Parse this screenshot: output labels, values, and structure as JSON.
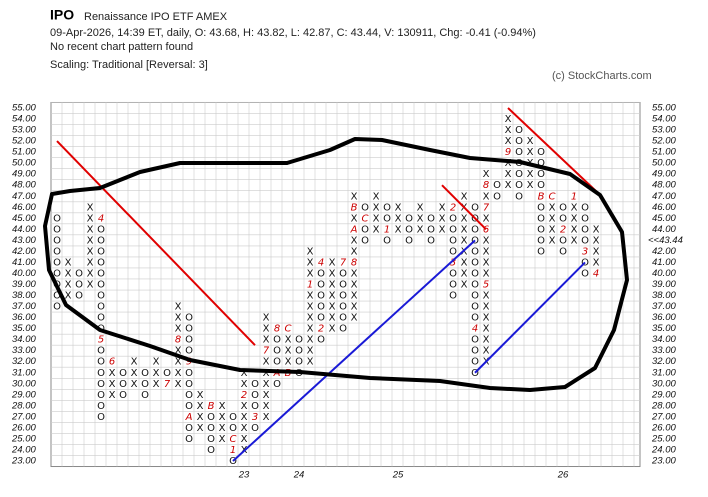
{
  "chart_data": {
    "type": "point-and-figure",
    "symbol": "IPO",
    "name": "Renaissance IPO ETF  AMEX",
    "quote": "09-Apr-2026, 14:39 ET, daily, O: 43.68, H: 43.82, L: 42.87, C: 43.44, V: 130911, Chg: -0.41 (-0.94%)",
    "pattern": "No recent chart pattern found",
    "scaling": "Scaling: Traditional [Reversal: 3]",
    "credit": "(c) StockCharts.com",
    "ylim": [
      23,
      55
    ],
    "yticks": [
      {
        "value": 23,
        "label": "23.00"
      },
      {
        "value": 24,
        "label": "24.00"
      },
      {
        "value": 25,
        "label": "25.00"
      },
      {
        "value": 26,
        "label": "26.00"
      },
      {
        "value": 27,
        "label": "27.00"
      },
      {
        "value": 28,
        "label": "28.00"
      },
      {
        "value": 29,
        "label": "29.00"
      },
      {
        "value": 30,
        "label": "30.00"
      },
      {
        "value": 31,
        "label": "31.00"
      },
      {
        "value": 32,
        "label": "32.00"
      },
      {
        "value": 33,
        "label": "33.00"
      },
      {
        "value": 34,
        "label": "34.00"
      },
      {
        "value": 35,
        "label": "35.00"
      },
      {
        "value": 36,
        "label": "36.00"
      },
      {
        "value": 37,
        "label": "37.00"
      },
      {
        "value": 38,
        "label": "38.00"
      },
      {
        "value": 39,
        "label": "39.00"
      },
      {
        "value": 40,
        "label": "40.00"
      },
      {
        "value": 41,
        "label": "41.00"
      },
      {
        "value": 42,
        "label": "42.00"
      },
      {
        "value": 43,
        "label": "43.00"
      },
      {
        "value": 44,
        "label": "44.00"
      },
      {
        "value": 45,
        "label": "45.00"
      },
      {
        "value": 46,
        "label": "46.00"
      },
      {
        "value": 47,
        "label": "47.00"
      },
      {
        "value": 48,
        "label": "48.00"
      },
      {
        "value": 49,
        "label": "49.00"
      },
      {
        "value": 50,
        "label": "50.00"
      },
      {
        "value": 51,
        "label": "51.00"
      },
      {
        "value": 52,
        "label": "52.00"
      },
      {
        "value": 53,
        "label": "53.00"
      },
      {
        "value": 54,
        "label": "54.00"
      },
      {
        "value": 55,
        "label": "55.00"
      }
    ],
    "highlight_tick": 43,
    "last_close": {
      "value": 43.44,
      "label": "<<43.44"
    },
    "x_color": "#111111",
    "o_color": "#111111",
    "label_color": "#cc0000",
    "highlight_color": "#cc0000",
    "columns": [
      {
        "type": "O",
        "high": 45,
        "low": 37
      },
      {
        "type": "X",
        "low": 38,
        "high": 41
      },
      {
        "type": "O",
        "high": 40,
        "low": 38
      },
      {
        "type": "X",
        "low": 39,
        "high": 46
      },
      {
        "type": "O",
        "high": 45,
        "low": 27
      },
      {
        "type": "X",
        "low": 29,
        "high": 32
      },
      {
        "type": "O",
        "high": 31,
        "low": 29
      },
      {
        "type": "X",
        "low": 30,
        "high": 32
      },
      {
        "type": "O",
        "high": 31,
        "low": 29
      },
      {
        "type": "X",
        "low": 30,
        "high": 32
      },
      {
        "type": "O",
        "high": 31,
        "low": 30
      },
      {
        "type": "X",
        "low": 30,
        "high": 37
      },
      {
        "type": "O",
        "high": 36,
        "low": 25
      },
      {
        "type": "X",
        "low": 26,
        "high": 29
      },
      {
        "type": "O",
        "high": 28,
        "low": 24
      },
      {
        "type": "X",
        "low": 25,
        "high": 28
      },
      {
        "type": "O",
        "high": 27,
        "low": 23
      },
      {
        "type": "X",
        "low": 24,
        "high": 31
      },
      {
        "type": "O",
        "high": 30,
        "low": 26
      },
      {
        "type": "X",
        "low": 27,
        "high": 36
      },
      {
        "type": "O",
        "high": 35,
        "low": 30
      },
      {
        "type": "X",
        "low": 31,
        "high": 35
      },
      {
        "type": "O",
        "high": 34,
        "low": 31
      },
      {
        "type": "X",
        "low": 32,
        "high": 42
      },
      {
        "type": "O",
        "high": 41,
        "low": 34
      },
      {
        "type": "X",
        "low": 35,
        "high": 41
      },
      {
        "type": "O",
        "high": 40,
        "low": 35
      },
      {
        "type": "X",
        "low": 36,
        "high": 47
      },
      {
        "type": "O",
        "high": 46,
        "low": 43
      },
      {
        "type": "X",
        "low": 44,
        "high": 47
      },
      {
        "type": "O",
        "high": 46,
        "low": 43
      },
      {
        "type": "X",
        "low": 44,
        "high": 46
      },
      {
        "type": "O",
        "high": 45,
        "low": 43
      },
      {
        "type": "X",
        "low": 44,
        "high": 46
      },
      {
        "type": "O",
        "high": 45,
        "low": 43
      },
      {
        "type": "X",
        "low": 44,
        "high": 46
      },
      {
        "type": "O",
        "high": 45,
        "low": 38
      },
      {
        "type": "X",
        "low": 39,
        "high": 47
      },
      {
        "type": "O",
        "high": 46,
        "low": 31
      },
      {
        "type": "X",
        "low": 32,
        "high": 49
      },
      {
        "type": "O",
        "high": 48,
        "low": 47
      },
      {
        "type": "X",
        "low": 48,
        "high": 54
      },
      {
        "type": "O",
        "high": 53,
        "low": 47
      },
      {
        "type": "X",
        "low": 48,
        "high": 52
      },
      {
        "type": "O",
        "high": 51,
        "low": 42
      },
      {
        "type": "X",
        "low": 43,
        "high": 47
      },
      {
        "type": "O",
        "high": 46,
        "low": 42
      },
      {
        "type": "X",
        "low": 43,
        "high": 47
      },
      {
        "type": "O",
        "high": 46,
        "low": 40
      },
      {
        "type": "X",
        "low": 41,
        "high": 44
      }
    ],
    "month_labels": [
      {
        "column": 4,
        "price": 45,
        "label": "4"
      },
      {
        "column": 4,
        "price": 34,
        "label": "5"
      },
      {
        "column": 5,
        "price": 32,
        "label": "6"
      },
      {
        "column": 10,
        "price": 30,
        "label": "7"
      },
      {
        "column": 11,
        "price": 34,
        "label": "8"
      },
      {
        "column": 12,
        "price": 32,
        "label": "9"
      },
      {
        "column": 12,
        "price": 27,
        "label": "A"
      },
      {
        "column": 14,
        "price": 28,
        "label": "B"
      },
      {
        "column": 16,
        "price": 25,
        "label": "C"
      },
      {
        "column": 16,
        "price": 24,
        "label": "1"
      },
      {
        "column": 17,
        "price": 29,
        "label": "2"
      },
      {
        "column": 18,
        "price": 27,
        "label": "3"
      },
      {
        "column": 19,
        "price": 33,
        "label": "7"
      },
      {
        "column": 20,
        "price": 35,
        "label": "8"
      },
      {
        "column": 20,
        "price": 31,
        "label": "A"
      },
      {
        "column": 21,
        "price": 35,
        "label": "C"
      },
      {
        "column": 21,
        "price": 31,
        "label": "B"
      },
      {
        "column": 23,
        "price": 39,
        "label": "1"
      },
      {
        "column": 24,
        "price": 35,
        "label": "2"
      },
      {
        "column": 24,
        "price": 41,
        "label": "4"
      },
      {
        "column": 26,
        "price": 41,
        "label": "7"
      },
      {
        "column": 27,
        "price": 41,
        "label": "8"
      },
      {
        "column": 27,
        "price": 46,
        "label": "B"
      },
      {
        "column": 27,
        "price": 44,
        "label": "A"
      },
      {
        "column": 28,
        "price": 45,
        "label": "C"
      },
      {
        "column": 30,
        "price": 44,
        "label": "1"
      },
      {
        "column": 36,
        "price": 46,
        "label": "2"
      },
      {
        "column": 36,
        "price": 41,
        "label": "3"
      },
      {
        "column": 38,
        "price": 35,
        "label": "4"
      },
      {
        "column": 39,
        "price": 39,
        "label": "5"
      },
      {
        "column": 39,
        "price": 44,
        "label": "6"
      },
      {
        "column": 39,
        "price": 46,
        "label": "7"
      },
      {
        "column": 39,
        "price": 48,
        "label": "8"
      },
      {
        "column": 41,
        "price": 51,
        "label": "9"
      },
      {
        "column": 44,
        "price": 47,
        "label": "B"
      },
      {
        "column": 45,
        "price": 47,
        "label": "C"
      },
      {
        "column": 47,
        "price": 47,
        "label": "1"
      },
      {
        "column": 46,
        "price": 44,
        "label": "2"
      },
      {
        "column": 48,
        "price": 42,
        "label": "3"
      },
      {
        "column": 49,
        "price": 40,
        "label": "4"
      }
    ],
    "year_labels": [
      {
        "column": 17,
        "label": "23"
      },
      {
        "column": 22,
        "label": "24"
      },
      {
        "column": 31,
        "label": "25"
      },
      {
        "column": 46,
        "label": "26"
      }
    ],
    "trendlines": [
      {
        "color": "#e00000",
        "from": [
          0,
          52
        ],
        "to": [
          18,
          33.5
        ]
      },
      {
        "color": "#e00000",
        "from": [
          35,
          48
        ],
        "to": [
          39,
          44
        ]
      },
      {
        "color": "#e00000",
        "from": [
          41,
          55
        ],
        "to": [
          49.5,
          47
        ]
      },
      {
        "color": "#1a1ad6",
        "from": [
          16,
          23
        ],
        "to": [
          38,
          43
        ]
      },
      {
        "color": "#1a1ad6",
        "from": [
          38,
          31
        ],
        "to": [
          48,
          41
        ]
      }
    ]
  }
}
